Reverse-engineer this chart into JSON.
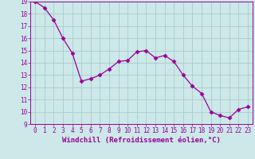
{
  "x": [
    0,
    1,
    2,
    3,
    4,
    5,
    6,
    7,
    8,
    9,
    10,
    11,
    12,
    13,
    14,
    15,
    16,
    17,
    18,
    19,
    20,
    21,
    22,
    23
  ],
  "y": [
    19.0,
    18.5,
    17.5,
    16.0,
    14.8,
    12.5,
    12.7,
    13.0,
    13.5,
    14.1,
    14.2,
    14.9,
    15.0,
    14.4,
    14.6,
    14.1,
    13.0,
    12.1,
    11.5,
    10.0,
    9.7,
    9.5,
    10.2,
    10.4
  ],
  "line_color": "#990099",
  "marker": "D",
  "marker_size": 2.5,
  "bg_color": "#cce8e8",
  "grid_color": "#aacccc",
  "xlabel": "Windchill (Refroidissement éolien,°C)",
  "ylim": [
    9,
    19
  ],
  "xlim_min": -0.5,
  "xlim_max": 23.5,
  "yticks": [
    9,
    10,
    11,
    12,
    13,
    14,
    15,
    16,
    17,
    18,
    19
  ],
  "xticks": [
    0,
    1,
    2,
    3,
    4,
    5,
    6,
    7,
    8,
    9,
    10,
    11,
    12,
    13,
    14,
    15,
    16,
    17,
    18,
    19,
    20,
    21,
    22,
    23
  ],
  "axis_color": "#990099",
  "tick_color": "#990099",
  "label_fontsize": 6.5,
  "tick_fontsize": 5.5
}
